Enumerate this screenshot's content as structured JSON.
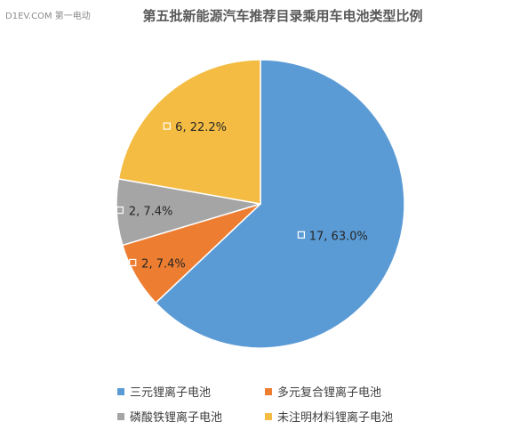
{
  "watermark": "D1EV.COM 第一电动",
  "chart_data": {
    "type": "pie",
    "title": "第五批新能源汽车推荐目录乘用车电池类型比例",
    "legend_position": "bottom",
    "slices": [
      {
        "name": "三元锂离子电池",
        "value": 17,
        "percent": "63.0%",
        "label": "17, 63.0%",
        "color": "#5b9bd5"
      },
      {
        "name": "多元复合锂离子电池",
        "value": 2,
        "percent": "7.4%",
        "label": "2, 7.4%",
        "color": "#ed7d31"
      },
      {
        "name": "磷酸铁锂离子电池",
        "value": 2,
        "percent": "7.4%",
        "label": "2, 7.4%",
        "color": "#a5a5a5"
      },
      {
        "name": "未注明材料锂离子电池",
        "value": 6,
        "percent": "22.2%",
        "label": "6, 22.2%",
        "color": "#f4bc42"
      }
    ]
  }
}
